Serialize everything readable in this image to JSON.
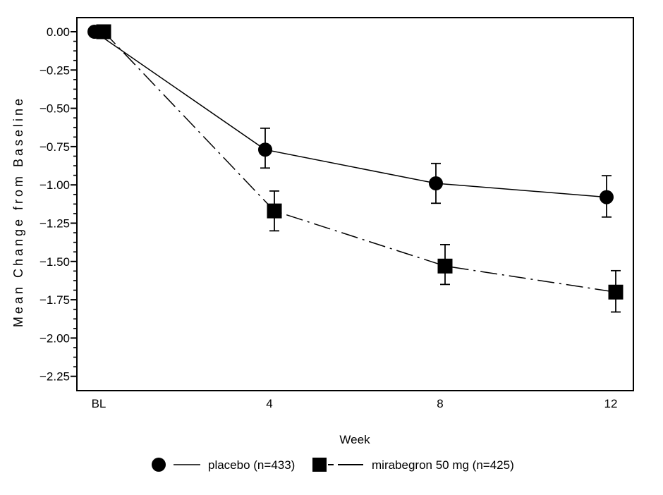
{
  "figure": {
    "background": "#ffffff",
    "ink_color": "#000000"
  },
  "chart_data": {
    "type": "line",
    "title": "",
    "xlabel": "Week",
    "ylabel": "Mean Change from Baseline",
    "x_tick_labels": [
      "BL",
      "4",
      "8",
      "12"
    ],
    "x_values": [
      0,
      4,
      8,
      12
    ],
    "y_tick_labels": [
      "0.00",
      "−0.25",
      "−0.50",
      "−0.75",
      "−1.00",
      "−1.25",
      "−1.50",
      "−1.75",
      "−2.00",
      "−2.25"
    ],
    "y_tick_values": [
      0,
      -0.25,
      -0.5,
      -0.75,
      -1.0,
      -1.25,
      -1.5,
      -1.75,
      -2.0,
      -2.25
    ],
    "ylim": [
      0.09,
      -2.34
    ],
    "grid": false,
    "error_bars": true,
    "legend_position": "bottom",
    "series": [
      {
        "name": "placebo (n=433)",
        "marker": "circle",
        "line_style": "solid",
        "color": "#000000",
        "values": [
          0.0,
          -0.77,
          -0.99,
          -1.08
        ],
        "error_high": [
          null,
          -0.63,
          -0.86,
          -0.94
        ],
        "error_low": [
          null,
          -0.89,
          -1.12,
          -1.21
        ]
      },
      {
        "name": "mirabegron 50 mg (n=425)",
        "marker": "square",
        "line_style": "dash-dot",
        "color": "#000000",
        "values": [
          0.0,
          -1.17,
          -1.53,
          -1.7
        ],
        "error_high": [
          null,
          -1.04,
          -1.39,
          -1.56
        ],
        "error_low": [
          null,
          -1.3,
          -1.65,
          -1.83
        ]
      }
    ]
  }
}
